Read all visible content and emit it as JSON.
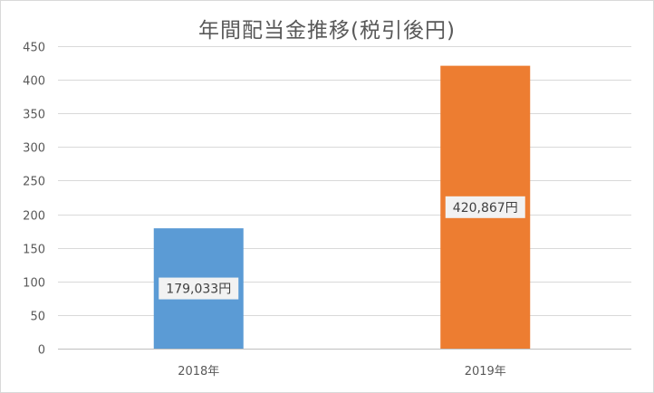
{
  "chart_data": {
    "type": "bar",
    "title": "年間配当金推移(税引後円)",
    "categories": [
      "2018年",
      "2019年"
    ],
    "values": [
      179033,
      420867
    ],
    "data_labels": [
      "179,033円",
      "420,867円"
    ],
    "yticks": [
      "0",
      "50",
      "100",
      "150",
      "200",
      "250",
      "300",
      "350",
      "400",
      "450"
    ],
    "ylim": [
      0,
      450000
    ],
    "grid": true,
    "legend": "none",
    "colors": [
      "#5b9bd5",
      "#ed7d31"
    ]
  }
}
